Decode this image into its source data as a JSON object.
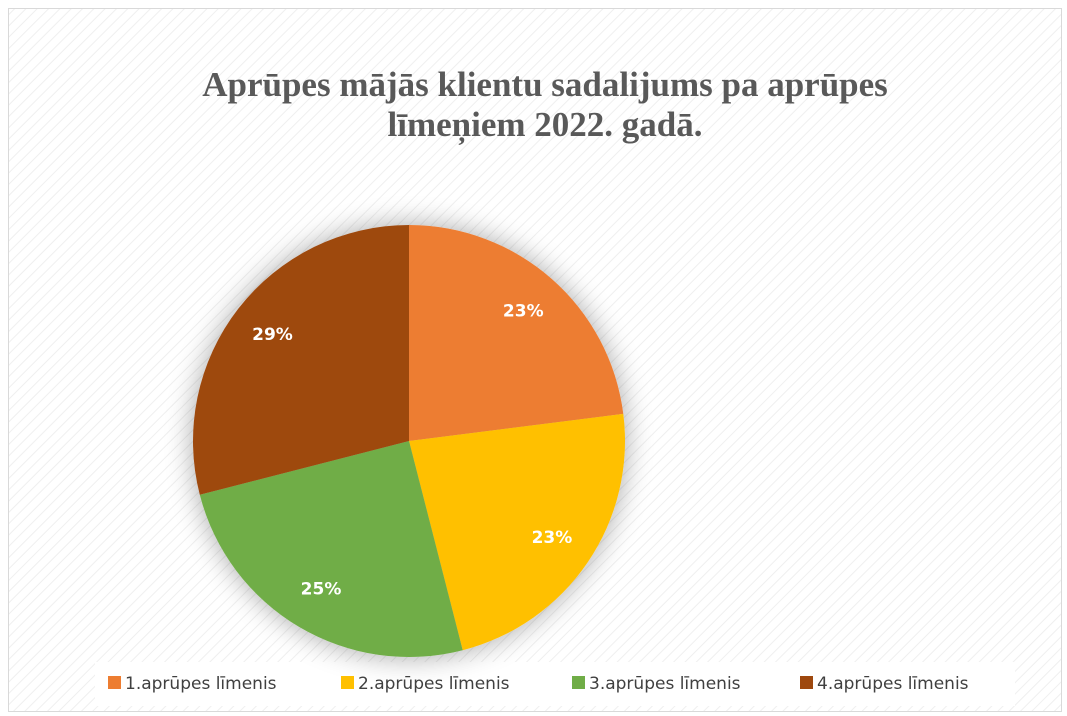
{
  "chart_data": {
    "type": "pie",
    "title": [
      "Aprūpes mājās klientu sadalijums pa aprūpes",
      "līmeņiem 2022. gadā."
    ],
    "categories": [
      "1.aprūpes līmenis",
      "2.aprūpes līmenis",
      "3.aprūpes līmenis",
      "4.aprūpes līmenis"
    ],
    "values": [
      23,
      23,
      25,
      29
    ],
    "value_labels": [
      "23%",
      "23%",
      "25%",
      "29%"
    ],
    "colors": [
      "#ED7D31",
      "#FFC000",
      "#70AD47",
      "#9E480E"
    ],
    "legend": "bottom"
  }
}
